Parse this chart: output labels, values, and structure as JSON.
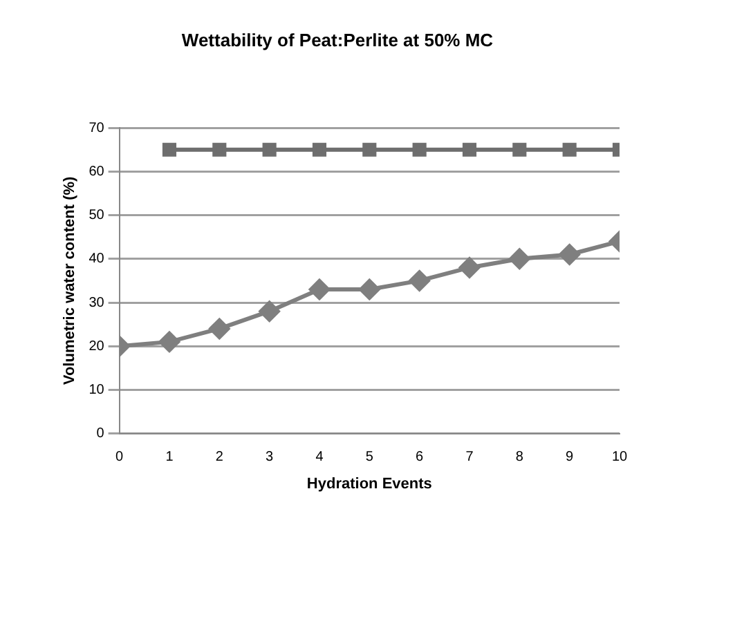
{
  "chart_data": {
    "type": "line",
    "title": "Wettability of Peat:Perlite at 50% MC",
    "xlabel": "Hydration Events",
    "ylabel": "Volumetric water content (%)",
    "x": [
      0,
      1,
      2,
      3,
      4,
      5,
      6,
      7,
      8,
      9,
      10
    ],
    "series": [
      {
        "color": "#7f7f7f",
        "marker": "diamond",
        "values": [
          20,
          21,
          24,
          28,
          33,
          33,
          35,
          38,
          40,
          41,
          44
        ]
      },
      {
        "color": "#6e6e6e",
        "marker": "square",
        "x": [
          1,
          2,
          3,
          4,
          5,
          6,
          7,
          8,
          9,
          10
        ],
        "values": [
          65,
          65,
          65,
          65,
          65,
          65,
          65,
          65,
          65,
          65
        ]
      }
    ],
    "xlim": [
      0,
      10
    ],
    "xticks": [
      0,
      1,
      2,
      3,
      4,
      5,
      6,
      7,
      8,
      9,
      10
    ],
    "ylim": [
      0,
      70
    ],
    "yticks": [
      0,
      10,
      20,
      30,
      40,
      50,
      60,
      70
    ],
    "grid": "y",
    "legend": false
  }
}
